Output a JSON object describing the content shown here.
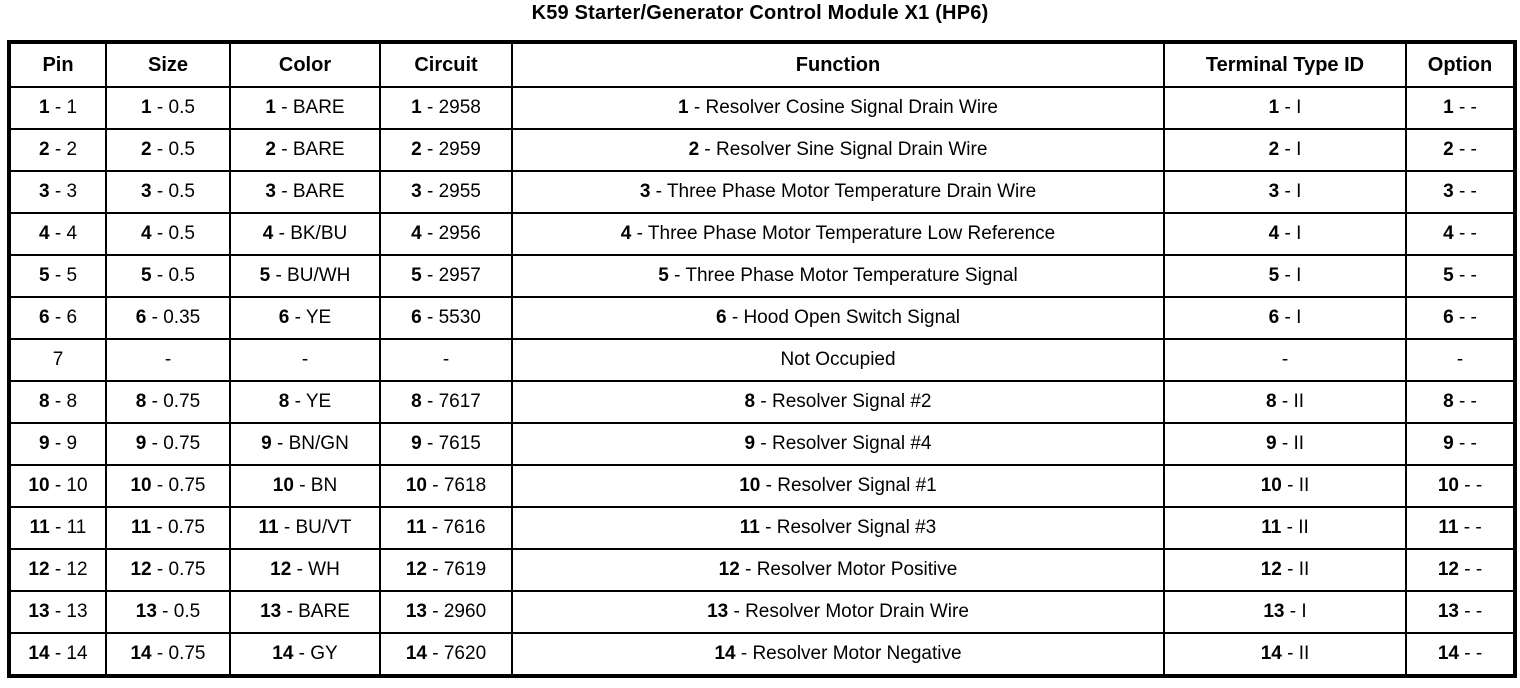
{
  "page_title": "K59 Starter/Generator Control Module X1 (HP6)",
  "table": {
    "column_keys": [
      "pin",
      "size",
      "color",
      "circuit",
      "function",
      "terminal-type-id",
      "option"
    ],
    "headers": [
      "Pin",
      "Size",
      "Color",
      "Circuit",
      "Function",
      "Terminal Type ID",
      "Option"
    ],
    "rows": [
      {
        "cells": [
          {
            "bold": "1",
            "text": "1"
          },
          {
            "bold": "1",
            "text": "0.5"
          },
          {
            "bold": "1",
            "text": "BARE"
          },
          {
            "bold": "1",
            "text": "2958"
          },
          {
            "bold": "1",
            "text": "Resolver Cosine Signal Drain Wire"
          },
          {
            "bold": "1",
            "text": "I"
          },
          {
            "bold": "1",
            "text": "-"
          }
        ]
      },
      {
        "cells": [
          {
            "bold": "2",
            "text": "2"
          },
          {
            "bold": "2",
            "text": "0.5"
          },
          {
            "bold": "2",
            "text": "BARE"
          },
          {
            "bold": "2",
            "text": "2959"
          },
          {
            "bold": "2",
            "text": "Resolver Sine Signal Drain Wire"
          },
          {
            "bold": "2",
            "text": "I"
          },
          {
            "bold": "2",
            "text": "-"
          }
        ]
      },
      {
        "cells": [
          {
            "bold": "3",
            "text": "3"
          },
          {
            "bold": "3",
            "text": "0.5"
          },
          {
            "bold": "3",
            "text": "BARE"
          },
          {
            "bold": "3",
            "text": "2955"
          },
          {
            "bold": "3",
            "text": "Three Phase Motor Temperature Drain Wire"
          },
          {
            "bold": "3",
            "text": "I"
          },
          {
            "bold": "3",
            "text": "-"
          }
        ]
      },
      {
        "cells": [
          {
            "bold": "4",
            "text": "4"
          },
          {
            "bold": "4",
            "text": "0.5"
          },
          {
            "bold": "4",
            "text": "BK/BU"
          },
          {
            "bold": "4",
            "text": "2956"
          },
          {
            "bold": "4",
            "text": "Three Phase Motor Temperature Low Reference"
          },
          {
            "bold": "4",
            "text": "I"
          },
          {
            "bold": "4",
            "text": "-"
          }
        ]
      },
      {
        "cells": [
          {
            "bold": "5",
            "text": "5"
          },
          {
            "bold": "5",
            "text": "0.5"
          },
          {
            "bold": "5",
            "text": "BU/WH"
          },
          {
            "bold": "5",
            "text": "2957"
          },
          {
            "bold": "5",
            "text": "Three Phase Motor Temperature Signal"
          },
          {
            "bold": "5",
            "text": "I"
          },
          {
            "bold": "5",
            "text": "-"
          }
        ]
      },
      {
        "cells": [
          {
            "bold": "6",
            "text": "6"
          },
          {
            "bold": "6",
            "text": "0.35"
          },
          {
            "bold": "6",
            "text": "YE"
          },
          {
            "bold": "6",
            "text": "5530"
          },
          {
            "bold": "6",
            "text": "Hood Open Switch Signal"
          },
          {
            "bold": "6",
            "text": "I"
          },
          {
            "bold": "6",
            "text": "-"
          }
        ]
      },
      {
        "cells": [
          {
            "text": "7"
          },
          {
            "text": "-"
          },
          {
            "text": "-"
          },
          {
            "text": "-"
          },
          {
            "text": "Not Occupied"
          },
          {
            "text": "-"
          },
          {
            "text": "-"
          }
        ]
      },
      {
        "cells": [
          {
            "bold": "8",
            "text": "8"
          },
          {
            "bold": "8",
            "text": "0.75"
          },
          {
            "bold": "8",
            "text": "YE"
          },
          {
            "bold": "8",
            "text": "7617"
          },
          {
            "bold": "8",
            "text": "Resolver Signal #2"
          },
          {
            "bold": "8",
            "text": "II"
          },
          {
            "bold": "8",
            "text": "-"
          }
        ]
      },
      {
        "cells": [
          {
            "bold": "9",
            "text": "9"
          },
          {
            "bold": "9",
            "text": "0.75"
          },
          {
            "bold": "9",
            "text": "BN/GN"
          },
          {
            "bold": "9",
            "text": "7615"
          },
          {
            "bold": "9",
            "text": "Resolver Signal #4"
          },
          {
            "bold": "9",
            "text": "II"
          },
          {
            "bold": "9",
            "text": "-"
          }
        ]
      },
      {
        "cells": [
          {
            "bold": "10",
            "text": "10"
          },
          {
            "bold": "10",
            "text": "0.75"
          },
          {
            "bold": "10",
            "text": "BN"
          },
          {
            "bold": "10",
            "text": "7618"
          },
          {
            "bold": "10",
            "text": "Resolver Signal #1"
          },
          {
            "bold": "10",
            "text": "II"
          },
          {
            "bold": "10",
            "text": "-"
          }
        ]
      },
      {
        "cells": [
          {
            "bold": "11",
            "text": "11"
          },
          {
            "bold": "11",
            "text": "0.75"
          },
          {
            "bold": "11",
            "text": "BU/VT"
          },
          {
            "bold": "11",
            "text": "7616"
          },
          {
            "bold": "11",
            "text": "Resolver Signal #3"
          },
          {
            "bold": "11",
            "text": "II"
          },
          {
            "bold": "11",
            "text": "-"
          }
        ]
      },
      {
        "cells": [
          {
            "bold": "12",
            "text": "12"
          },
          {
            "bold": "12",
            "text": "0.75"
          },
          {
            "bold": "12",
            "text": "WH"
          },
          {
            "bold": "12",
            "text": "7619"
          },
          {
            "bold": "12",
            "text": "Resolver Motor Positive"
          },
          {
            "bold": "12",
            "text": "II"
          },
          {
            "bold": "12",
            "text": "-"
          }
        ]
      },
      {
        "cells": [
          {
            "bold": "13",
            "text": "13"
          },
          {
            "bold": "13",
            "text": "0.5"
          },
          {
            "bold": "13",
            "text": "BARE"
          },
          {
            "bold": "13",
            "text": "2960"
          },
          {
            "bold": "13",
            "text": "Resolver Motor Drain Wire"
          },
          {
            "bold": "13",
            "text": "I"
          },
          {
            "bold": "13",
            "text": "-"
          }
        ]
      },
      {
        "cells": [
          {
            "bold": "14",
            "text": "14"
          },
          {
            "bold": "14",
            "text": "0.75"
          },
          {
            "bold": "14",
            "text": "GY"
          },
          {
            "bold": "14",
            "text": "7620"
          },
          {
            "bold": "14",
            "text": "Resolver Motor Negative"
          },
          {
            "bold": "14",
            "text": "II"
          },
          {
            "bold": "14",
            "text": "-"
          }
        ]
      }
    ]
  }
}
